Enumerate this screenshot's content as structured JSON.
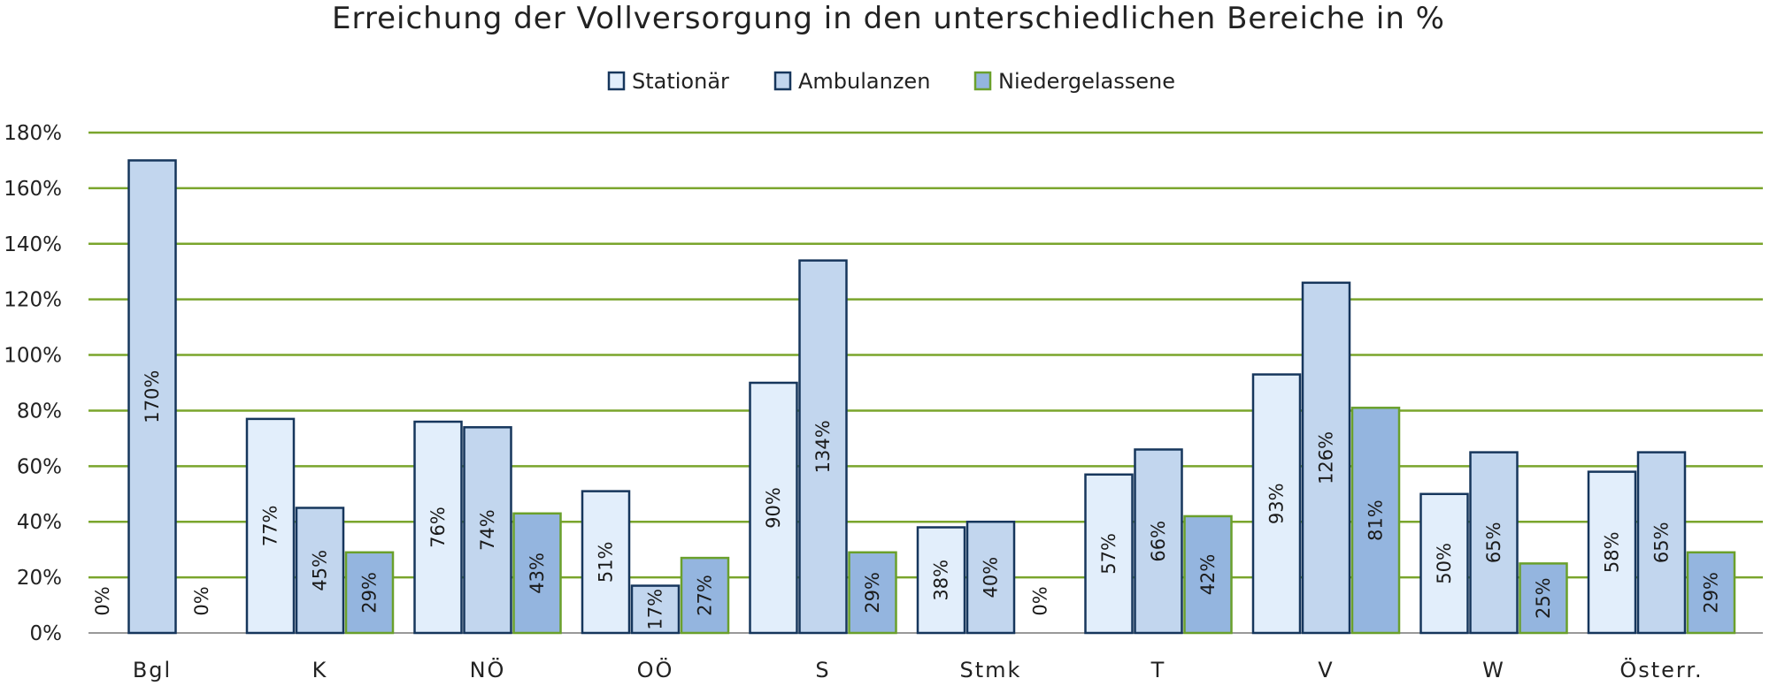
{
  "chart_data": {
    "type": "bar",
    "title": "Erreichung der Vollversorgung in den unterschiedlichen Bereiche in %",
    "categories": [
      "Bgl",
      "K",
      "NÖ",
      "OÖ",
      "S",
      "Stmk",
      "T",
      "V",
      "W",
      "Österr."
    ],
    "series": [
      {
        "name": "Stationär",
        "values": [
          0,
          77,
          76,
          51,
          90,
          38,
          57,
          93,
          50,
          58
        ],
        "labels": [
          "0%",
          "77%",
          "76%",
          "51%",
          "90%",
          "38%",
          "57%",
          "93%",
          "50%",
          "58%"
        ]
      },
      {
        "name": "Ambulanzen",
        "values": [
          170,
          45,
          74,
          17,
          134,
          40,
          66,
          126,
          65,
          65
        ],
        "labels": [
          "170%",
          "45%",
          "74%",
          "17%",
          "134%",
          "40%",
          "66%",
          "126%",
          "65%",
          "65%"
        ]
      },
      {
        "name": "Niedergelassene",
        "values": [
          0,
          29,
          43,
          27,
          29,
          0,
          42,
          81,
          25,
          29
        ],
        "labels": [
          "0%",
          "29%",
          "43%",
          "27%",
          "29%",
          "0%",
          "42%",
          "81%",
          "25%",
          "29%"
        ]
      }
    ],
    "ylim": [
      0,
      180
    ],
    "yticks": [
      0,
      20,
      40,
      60,
      80,
      100,
      120,
      140,
      160,
      180
    ],
    "ytick_labels": [
      "0%",
      "20%",
      "40%",
      "60%",
      "80%",
      "100%",
      "120%",
      "140%",
      "160%",
      "180%"
    ],
    "grid": true,
    "legend_position": "top-center",
    "colors": {
      "Stationär": {
        "fill": "#e2eefb",
        "stroke": "#16365c"
      },
      "Ambulanzen": {
        "fill": "#c2d6ee",
        "stroke": "#16365c"
      },
      "Niedergelassene": {
        "fill": "#94b5df",
        "stroke": "#6aa02c"
      },
      "grid": "#7aa52c",
      "axis": "#999999"
    }
  }
}
